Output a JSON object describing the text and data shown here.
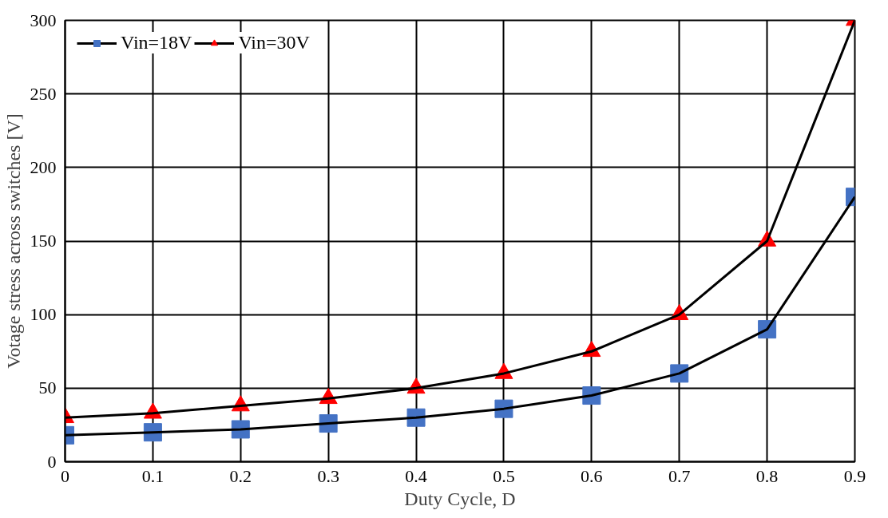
{
  "chart_data": {
    "type": "line",
    "xlabel": "Duty Cycle, D",
    "ylabel": "Votage stress across switches [V]",
    "x": [
      0,
      0.1,
      0.2,
      0.3,
      0.4,
      0.5,
      0.6,
      0.7,
      0.8,
      0.9
    ],
    "series": [
      {
        "name": "Vin=18V",
        "color": "#4472c4",
        "marker": "square",
        "values": [
          18,
          20,
          22,
          26,
          30,
          36,
          45,
          60,
          90,
          180
        ]
      },
      {
        "name": "Vin=30V",
        "color": "#ff0000",
        "marker": "triangle",
        "values": [
          30,
          33,
          38,
          43,
          50,
          60,
          75,
          100,
          150,
          300
        ]
      }
    ],
    "xlim": [
      0,
      0.9
    ],
    "xticks": [
      0,
      0.1,
      0.2,
      0.3,
      0.4,
      0.5,
      0.6,
      0.7,
      0.8,
      0.9
    ],
    "ylim": [
      0,
      300
    ],
    "yticks": [
      0,
      50,
      100,
      150,
      200,
      250,
      300
    ],
    "grid": true,
    "legend": "top left",
    "line_style": "solid"
  }
}
